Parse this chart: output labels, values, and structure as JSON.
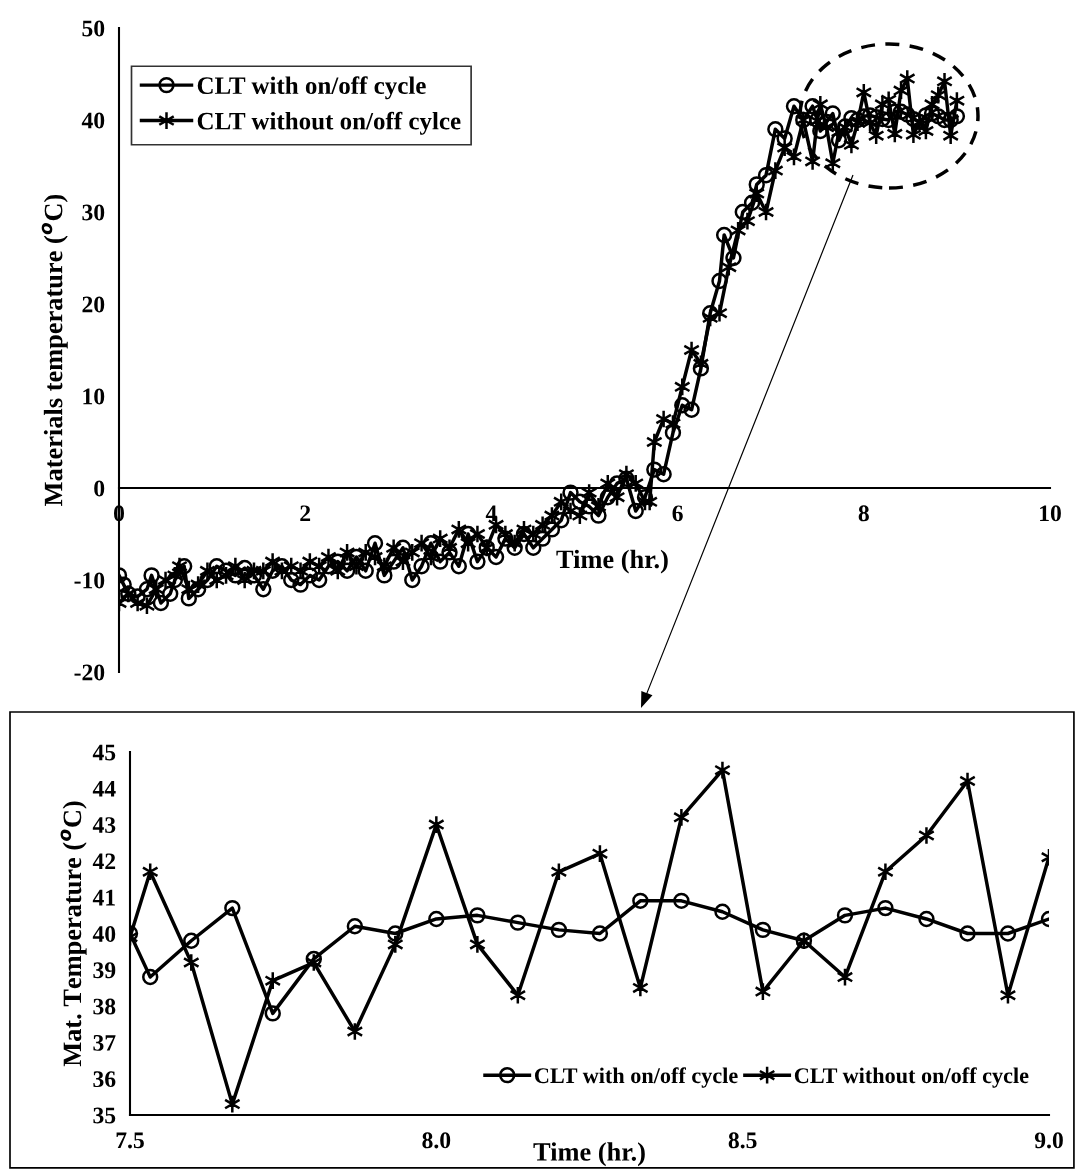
{
  "chart_data": [
    {
      "type": "line",
      "xlabel": "Time (hr.)",
      "ylabel": "Materials temperature ($^{o}$C)",
      "xlim": [
        0,
        10
      ],
      "ylim": [
        -20,
        50
      ],
      "xticks": [
        0,
        2,
        4,
        6,
        8,
        10
      ],
      "yticks": [
        -20,
        -10,
        0,
        10,
        20,
        30,
        40,
        50
      ],
      "grid": false,
      "legend": "top left",
      "line_style": "solid",
      "series": [
        {
          "name": "CLT with on/off cycle",
          "color": "#000000",
          "marker": "circle",
          "x": [
            0,
            0.05,
            0.1,
            0.2,
            0.3,
            0.35,
            0.45,
            0.55,
            0.6,
            0.7,
            0.75,
            0.85,
            0.95,
            1.05,
            1.15,
            1.25,
            1.35,
            1.45,
            1.55,
            1.65,
            1.75,
            1.85,
            1.95,
            2.05,
            2.15,
            2.25,
            2.35,
            2.45,
            2.55,
            2.65,
            2.75,
            2.85,
            2.95,
            3.05,
            3.15,
            3.25,
            3.35,
            3.45,
            3.55,
            3.65,
            3.75,
            3.85,
            3.95,
            4.05,
            4.15,
            4.25,
            4.35,
            4.45,
            4.55,
            4.65,
            4.75,
            4.85,
            4.95,
            5.05,
            5.15,
            5.25,
            5.35,
            5.45,
            5.55,
            5.65,
            5.75,
            5.85,
            5.95,
            6.05,
            6.15,
            6.25,
            6.35,
            6.45,
            6.5,
            6.6,
            6.7,
            6.8,
            6.85,
            6.95,
            7.05,
            7.15,
            7.25,
            7.35,
            7.45,
            7.5,
            7.533,
            7.6,
            7.667,
            7.733,
            7.8,
            7.867,
            7.933,
            8.0,
            8.067,
            8.133,
            8.2,
            8.267,
            8.333,
            8.4,
            8.467,
            8.533,
            8.6,
            8.667,
            8.733,
            8.8,
            8.867,
            8.933,
            9.0
          ],
          "values": [
            -9.5,
            -10.5,
            -11.5,
            -11.8,
            -11,
            -9.5,
            -12.5,
            -11.5,
            -10,
            -8.5,
            -12,
            -11,
            -10,
            -8.5,
            -9,
            -9.5,
            -8.7,
            -9.5,
            -11,
            -9,
            -8.5,
            -10,
            -10.5,
            -9.5,
            -10,
            -8.5,
            -8,
            -9,
            -7.5,
            -9,
            -6,
            -9.5,
            -8,
            -6.5,
            -10,
            -8.5,
            -6,
            -8,
            -7,
            -8.5,
            -5,
            -8,
            -6.5,
            -7.5,
            -5.5,
            -6.5,
            -5,
            -6.5,
            -5.5,
            -4.5,
            -3.5,
            -0.5,
            -1.5,
            -2,
            -3,
            -1,
            0.5,
            1,
            -2.5,
            -1,
            2,
            1.5,
            6,
            9,
            8.5,
            13,
            19,
            22.5,
            27.5,
            25,
            30,
            31,
            33,
            34,
            39,
            38,
            41.5,
            40,
            41.5,
            40.0,
            38.8,
            39.8,
            40.7,
            37.8,
            39.3,
            40.2,
            40.0,
            40.4,
            40.5,
            40.3,
            40.1,
            40.0,
            40.9,
            40.9,
            40.6,
            40.1,
            39.8,
            40.5,
            40.7,
            40.4,
            40.0,
            40.0,
            40.4
          ]
        },
        {
          "name": "CLT without on/off cylce",
          "color": "#000000",
          "marker": "cross",
          "x": [
            0,
            0.1,
            0.2,
            0.3,
            0.4,
            0.5,
            0.6,
            0.65,
            0.75,
            0.85,
            0.95,
            1.05,
            1.15,
            1.25,
            1.35,
            1.45,
            1.55,
            1.65,
            1.75,
            1.85,
            1.95,
            2.05,
            2.15,
            2.25,
            2.35,
            2.45,
            2.55,
            2.65,
            2.75,
            2.85,
            2.95,
            3.05,
            3.15,
            3.25,
            3.35,
            3.45,
            3.55,
            3.65,
            3.75,
            3.85,
            3.95,
            4.05,
            4.15,
            4.25,
            4.35,
            4.45,
            4.55,
            4.65,
            4.75,
            4.85,
            4.95,
            5.05,
            5.15,
            5.25,
            5.35,
            5.45,
            5.55,
            5.65,
            5.7,
            5.75,
            5.85,
            5.95,
            6.05,
            6.15,
            6.25,
            6.35,
            6.45,
            6.55,
            6.65,
            6.75,
            6.85,
            6.95,
            7.05,
            7.15,
            7.25,
            7.35,
            7.45,
            7.5,
            7.533,
            7.6,
            7.667,
            7.733,
            7.8,
            7.867,
            7.933,
            8.0,
            8.067,
            8.133,
            8.2,
            8.267,
            8.333,
            8.4,
            8.467,
            8.533,
            8.6,
            8.667,
            8.733,
            8.8,
            8.867,
            8.933,
            9.0
          ],
          "values": [
            -12.5,
            -11.5,
            -12.5,
            -12.8,
            -11,
            -10,
            -9.5,
            -8.5,
            -11,
            -10.5,
            -9,
            -10,
            -9.5,
            -8.5,
            -10,
            -9,
            -9,
            -8,
            -9,
            -8.5,
            -9,
            -8,
            -8.5,
            -7.5,
            -9,
            -7,
            -8.5,
            -7,
            -7.5,
            -8.5,
            -6.5,
            -8,
            -7,
            -6,
            -7.5,
            -5.5,
            -6.5,
            -4.5,
            -6,
            -5,
            -6.5,
            -4,
            -5,
            -6,
            -4.5,
            -5,
            -4,
            -3,
            -1.5,
            -2.5,
            -3,
            -0.5,
            -2,
            0.5,
            -1,
            1.5,
            0.5,
            -1.5,
            -1.5,
            5,
            7.5,
            7,
            11,
            15,
            13.5,
            18.5,
            19,
            24,
            28,
            29,
            32,
            30,
            34.5,
            37,
            36,
            40,
            35.5,
            39.9,
            41.7,
            39.2,
            35.3,
            38.7,
            39.2,
            37.3,
            39.7,
            43.0,
            39.7,
            38.3,
            41.7,
            42.2,
            38.5,
            43.2,
            44.5,
            38.4,
            39.8,
            38.8,
            41.7,
            42.7,
            44.2,
            38.3,
            42.1
          ]
        }
      ]
    },
    {
      "type": "line",
      "xlabel": "Time (hr.)",
      "ylabel": "Mat. Temperature ($^{o}$C)",
      "xlim": [
        7.5,
        9.0
      ],
      "ylim": [
        35,
        45
      ],
      "xticks": [
        7.5,
        {
          "value": 8,
          "label": "8.0"
        },
        8.5,
        {
          "value": 9,
          "label": "9.0"
        }
      ],
      "yticks": [
        35,
        36,
        37,
        38,
        39,
        40,
        41,
        42,
        43,
        44,
        45
      ],
      "grid": false,
      "legend": "bottom right",
      "line_style": "solid",
      "x": [
        7.5,
        7.533,
        7.6,
        7.667,
        7.733,
        7.8,
        7.867,
        7.933,
        8.0,
        8.067,
        8.133,
        8.2,
        8.267,
        8.333,
        8.4,
        8.467,
        8.533,
        8.6,
        8.667,
        8.733,
        8.8,
        8.867,
        8.933,
        9.0
      ],
      "series": [
        {
          "name": "CLT with on/off cycle",
          "color": "#000000",
          "marker": "circle",
          "values": [
            40.0,
            38.8,
            39.8,
            40.7,
            37.8,
            39.3,
            40.2,
            40.0,
            40.4,
            40.5,
            40.3,
            40.1,
            40.0,
            40.9,
            40.9,
            40.6,
            40.1,
            39.8,
            40.5,
            40.7,
            40.4,
            40.0,
            40.0,
            40.4
          ]
        },
        {
          "name": "CLT without on/off cycle",
          "color": "#000000",
          "marker": "cross",
          "values": [
            39.9,
            41.7,
            39.2,
            35.3,
            38.7,
            39.2,
            37.3,
            39.7,
            43.0,
            39.7,
            38.3,
            41.7,
            42.2,
            38.5,
            43.2,
            44.5,
            38.4,
            39.8,
            38.8,
            41.7,
            42.7,
            44.2,
            38.3,
            42.1
          ]
        }
      ]
    }
  ]
}
